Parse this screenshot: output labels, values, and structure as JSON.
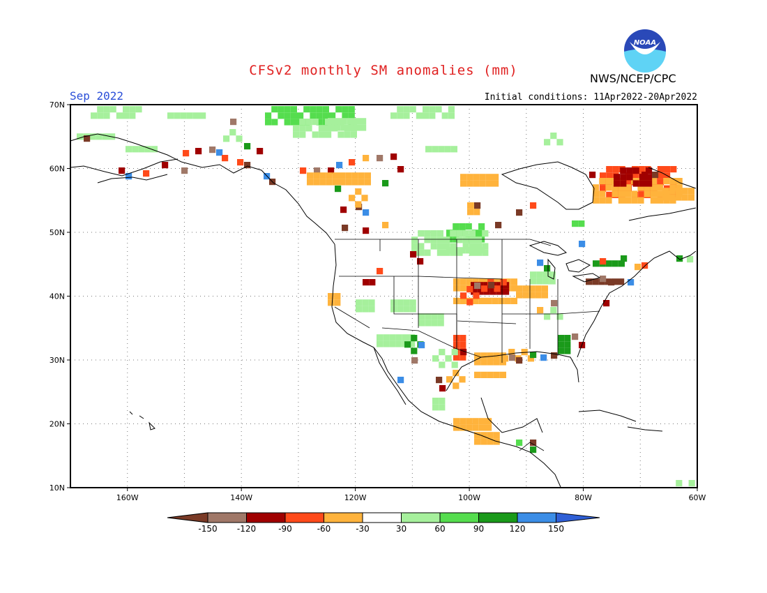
{
  "header": {
    "title": "CFSv2 monthly SM anomalies (mm)",
    "month": "Sep 2022",
    "initial_conditions": "Initial conditions: 11Apr2022-20Apr2022",
    "agency": "NWS/NCEP/CPC",
    "logo_text": "NOAA"
  },
  "map": {
    "lat_labels": [
      "70N",
      "60N",
      "50N",
      "40N",
      "30N",
      "20N",
      "10N"
    ],
    "lon_labels": [
      "160W",
      "140W",
      "120W",
      "100W",
      "80W",
      "60W"
    ],
    "lat_range": [
      10,
      70
    ],
    "lon_range": [
      -170,
      -60
    ]
  },
  "legend": {
    "levels": [
      "-150",
      "-120",
      "-90",
      "-60",
      "-30",
      "30",
      "60",
      "90",
      "120",
      "150"
    ],
    "colors": [
      "#7a3a26",
      "#a07868",
      "#a00000",
      "#ff4a1a",
      "#ffb33c",
      "#ffffff",
      "#a6f09c",
      "#55dd4e",
      "#1a9a1a",
      "#3b8de6",
      "#2f5fd6"
    ]
  }
}
